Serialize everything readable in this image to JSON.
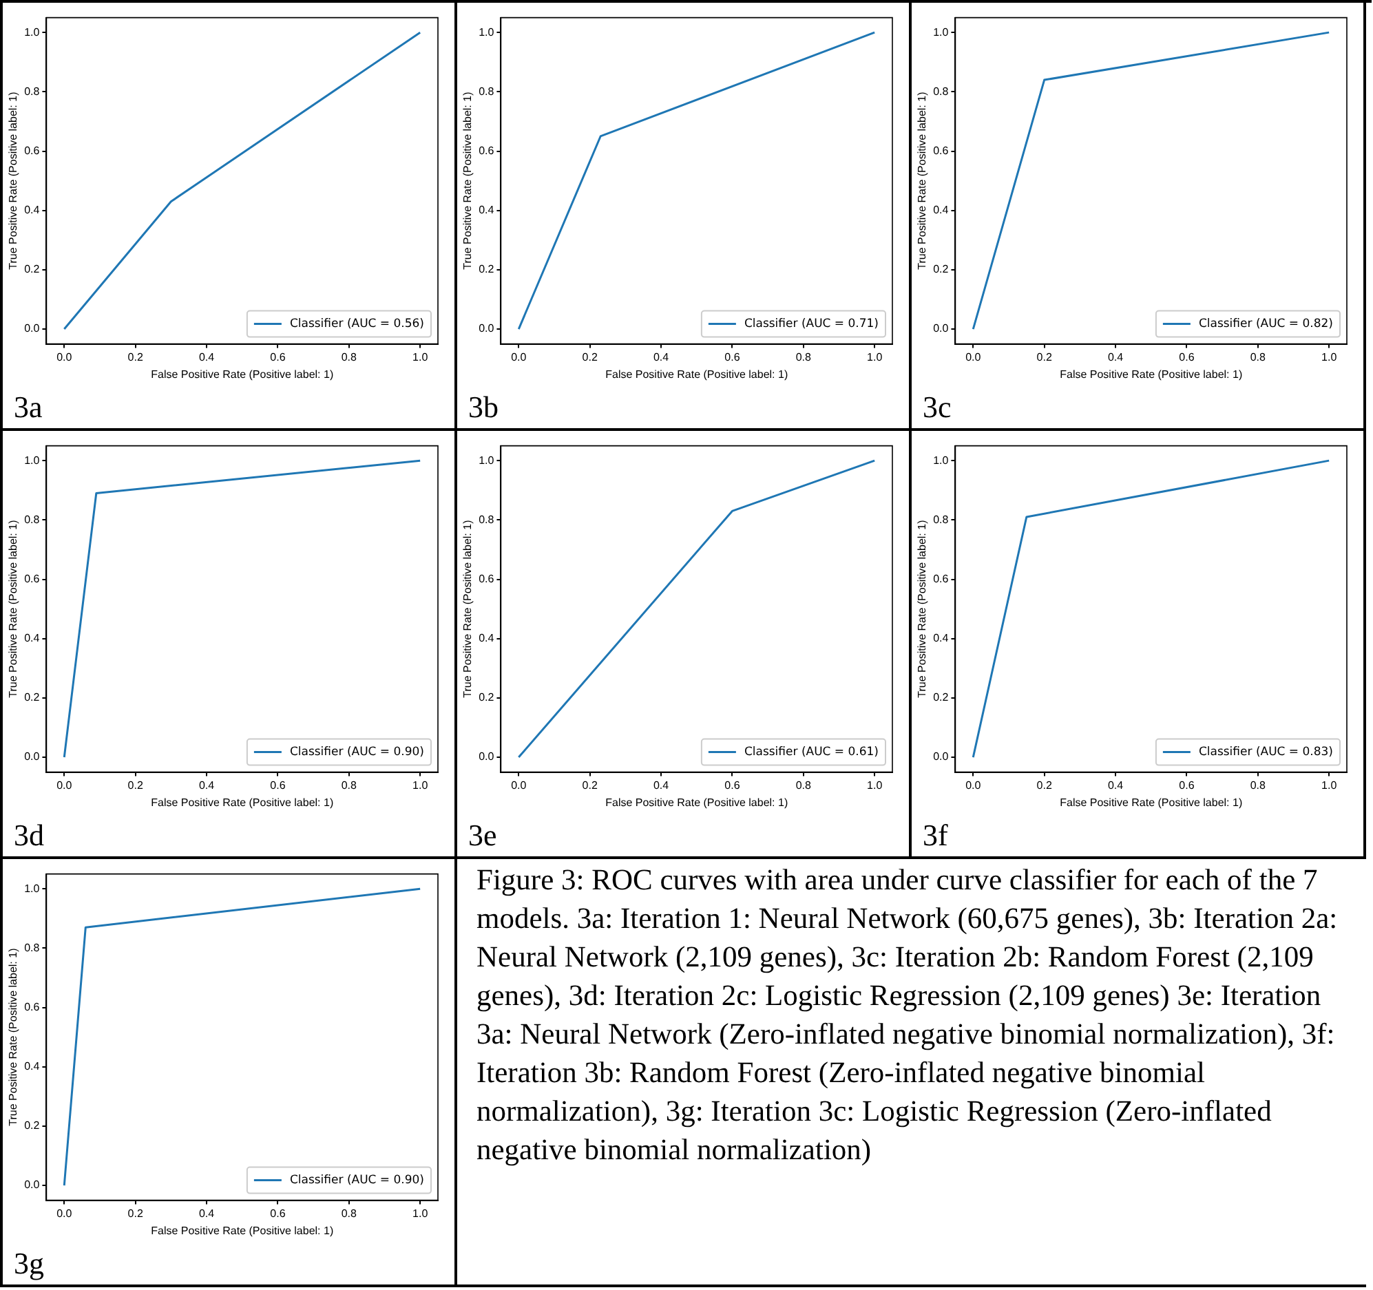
{
  "chart_data": [
    {
      "type": "line",
      "xlabel": "False Positive Rate (Positive label: 1)",
      "ylabel": "True Positive Rate (Positive label: 1)",
      "annotations": [
        "3a"
      ],
      "legend": "bottom right",
      "grid": false,
      "marker": "none",
      "line_style": "solid",
      "xlim": [
        -0.05,
        1.05
      ],
      "ylim": [
        -0.05,
        1.05
      ],
      "xticks": [
        {
          "value": 0,
          "label": "0.0"
        },
        {
          "value": 0.2,
          "label": "0.2"
        },
        {
          "value": 0.4,
          "label": "0.4"
        },
        {
          "value": 0.6,
          "label": "0.6"
        },
        {
          "value": 0.8,
          "label": "0.8"
        },
        {
          "value": 1,
          "label": "1.0"
        }
      ],
      "yticks": [
        {
          "value": 0,
          "label": "0.0"
        },
        {
          "value": 0.2,
          "label": "0.2"
        },
        {
          "value": 0.4,
          "label": "0.4"
        },
        {
          "value": 0.6,
          "label": "0.6"
        },
        {
          "value": 0.8,
          "label": "0.8"
        },
        {
          "value": 1,
          "label": "1.0"
        }
      ],
      "series": [
        {
          "name": "Classifier (AUC = 0.56)",
          "color": "#1f77b4",
          "x": [
            0,
            0.3,
            1
          ],
          "values": [
            0,
            0.43,
            1
          ]
        }
      ]
    },
    {
      "type": "line",
      "xlabel": "False Positive Rate (Positive label: 1)",
      "ylabel": "True Positive Rate (Positive label: 1)",
      "annotations": [
        "3b"
      ],
      "legend": "bottom right",
      "grid": false,
      "marker": "none",
      "line_style": "solid",
      "xlim": [
        -0.05,
        1.05
      ],
      "ylim": [
        -0.05,
        1.05
      ],
      "xticks": [
        {
          "value": 0,
          "label": "0.0"
        },
        {
          "value": 0.2,
          "label": "0.2"
        },
        {
          "value": 0.4,
          "label": "0.4"
        },
        {
          "value": 0.6,
          "label": "0.6"
        },
        {
          "value": 0.8,
          "label": "0.8"
        },
        {
          "value": 1,
          "label": "1.0"
        }
      ],
      "yticks": [
        {
          "value": 0,
          "label": "0.0"
        },
        {
          "value": 0.2,
          "label": "0.2"
        },
        {
          "value": 0.4,
          "label": "0.4"
        },
        {
          "value": 0.6,
          "label": "0.6"
        },
        {
          "value": 0.8,
          "label": "0.8"
        },
        {
          "value": 1,
          "label": "1.0"
        }
      ],
      "series": [
        {
          "name": "Classifier (AUC = 0.71)",
          "color": "#1f77b4",
          "x": [
            0,
            0.23,
            1
          ],
          "values": [
            0,
            0.65,
            1
          ]
        }
      ]
    },
    {
      "type": "line",
      "xlabel": "False Positive Rate (Positive label: 1)",
      "ylabel": "True Positive Rate (Positive label: 1)",
      "annotations": [
        "3c"
      ],
      "legend": "bottom right",
      "grid": false,
      "marker": "none",
      "line_style": "solid",
      "xlim": [
        -0.05,
        1.05
      ],
      "ylim": [
        -0.05,
        1.05
      ],
      "xticks": [
        {
          "value": 0,
          "label": "0.0"
        },
        {
          "value": 0.2,
          "label": "0.2"
        },
        {
          "value": 0.4,
          "label": "0.4"
        },
        {
          "value": 0.6,
          "label": "0.6"
        },
        {
          "value": 0.8,
          "label": "0.8"
        },
        {
          "value": 1,
          "label": "1.0"
        }
      ],
      "yticks": [
        {
          "value": 0,
          "label": "0.0"
        },
        {
          "value": 0.2,
          "label": "0.2"
        },
        {
          "value": 0.4,
          "label": "0.4"
        },
        {
          "value": 0.6,
          "label": "0.6"
        },
        {
          "value": 0.8,
          "label": "0.8"
        },
        {
          "value": 1,
          "label": "1.0"
        }
      ],
      "series": [
        {
          "name": "Classifier (AUC = 0.82)",
          "color": "#1f77b4",
          "x": [
            0,
            0.2,
            1
          ],
          "values": [
            0,
            0.84,
            1
          ]
        }
      ]
    },
    {
      "type": "line",
      "xlabel": "False Positive Rate (Positive label: 1)",
      "ylabel": "True Positive Rate (Positive label: 1)",
      "annotations": [
        "3d"
      ],
      "legend": "bottom right",
      "grid": false,
      "marker": "none",
      "line_style": "solid",
      "xlim": [
        -0.05,
        1.05
      ],
      "ylim": [
        -0.05,
        1.05
      ],
      "xticks": [
        {
          "value": 0,
          "label": "0.0"
        },
        {
          "value": 0.2,
          "label": "0.2"
        },
        {
          "value": 0.4,
          "label": "0.4"
        },
        {
          "value": 0.6,
          "label": "0.6"
        },
        {
          "value": 0.8,
          "label": "0.8"
        },
        {
          "value": 1,
          "label": "1.0"
        }
      ],
      "yticks": [
        {
          "value": 0,
          "label": "0.0"
        },
        {
          "value": 0.2,
          "label": "0.2"
        },
        {
          "value": 0.4,
          "label": "0.4"
        },
        {
          "value": 0.6,
          "label": "0.6"
        },
        {
          "value": 0.8,
          "label": "0.8"
        },
        {
          "value": 1,
          "label": "1.0"
        }
      ],
      "series": [
        {
          "name": "Classifier (AUC = 0.90)",
          "color": "#1f77b4",
          "x": [
            0,
            0.09,
            1
          ],
          "values": [
            0,
            0.89,
            1
          ]
        }
      ]
    },
    {
      "type": "line",
      "xlabel": "False Positive Rate (Positive label: 1)",
      "ylabel": "True Positive Rate (Positive label: 1)",
      "annotations": [
        "3e"
      ],
      "legend": "bottom right",
      "grid": false,
      "marker": "none",
      "line_style": "solid",
      "xlim": [
        -0.05,
        1.05
      ],
      "ylim": [
        -0.05,
        1.05
      ],
      "xticks": [
        {
          "value": 0,
          "label": "0.0"
        },
        {
          "value": 0.2,
          "label": "0.2"
        },
        {
          "value": 0.4,
          "label": "0.4"
        },
        {
          "value": 0.6,
          "label": "0.6"
        },
        {
          "value": 0.8,
          "label": "0.8"
        },
        {
          "value": 1,
          "label": "1.0"
        }
      ],
      "yticks": [
        {
          "value": 0,
          "label": "0.0"
        },
        {
          "value": 0.2,
          "label": "0.2"
        },
        {
          "value": 0.4,
          "label": "0.4"
        },
        {
          "value": 0.6,
          "label": "0.6"
        },
        {
          "value": 0.8,
          "label": "0.8"
        },
        {
          "value": 1,
          "label": "1.0"
        }
      ],
      "series": [
        {
          "name": "Classifier (AUC = 0.61)",
          "color": "#1f77b4",
          "x": [
            0,
            0.6,
            1
          ],
          "values": [
            0,
            0.83,
            1
          ]
        }
      ]
    },
    {
      "type": "line",
      "xlabel": "False Positive Rate (Positive label: 1)",
      "ylabel": "True Positive Rate (Positive label: 1)",
      "annotations": [
        "3f"
      ],
      "legend": "bottom right",
      "grid": false,
      "marker": "none",
      "line_style": "solid",
      "xlim": [
        -0.05,
        1.05
      ],
      "ylim": [
        -0.05,
        1.05
      ],
      "xticks": [
        {
          "value": 0,
          "label": "0.0"
        },
        {
          "value": 0.2,
          "label": "0.2"
        },
        {
          "value": 0.4,
          "label": "0.4"
        },
        {
          "value": 0.6,
          "label": "0.6"
        },
        {
          "value": 0.8,
          "label": "0.8"
        },
        {
          "value": 1,
          "label": "1.0"
        }
      ],
      "yticks": [
        {
          "value": 0,
          "label": "0.0"
        },
        {
          "value": 0.2,
          "label": "0.2"
        },
        {
          "value": 0.4,
          "label": "0.4"
        },
        {
          "value": 0.6,
          "label": "0.6"
        },
        {
          "value": 0.8,
          "label": "0.8"
        },
        {
          "value": 1,
          "label": "1.0"
        }
      ],
      "series": [
        {
          "name": "Classifier (AUC = 0.83)",
          "color": "#1f77b4",
          "x": [
            0,
            0.15,
            1
          ],
          "values": [
            0,
            0.81,
            1
          ]
        }
      ]
    },
    {
      "type": "line",
      "xlabel": "False Positive Rate (Positive label: 1)",
      "ylabel": "True Positive Rate (Positive label: 1)",
      "annotations": [
        "3g",
        "Figure 3: ROC curves with area under curve classifier for each of the 7 models. 3a: Iteration 1: Neural Network (60,675 genes), 3b: Iteration 2a: Neural Network (2,109 genes), 3c: Iteration 2b: Random Forest (2,109 genes), 3d: Iteration 2c: Logistic Regression (2,109 genes) 3e: Iteration 3a: Neural Network (Zero-inflated negative binomial normalization), 3f: Iteration 3b: Random Forest (Zero-inflated negative binomial normalization), 3g: Iteration 3c: Logistic Regression (Zero-inflated negative binomial normalization)"
      ],
      "legend": "bottom right",
      "grid": false,
      "marker": "none",
      "line_style": "solid",
      "xlim": [
        -0.05,
        1.05
      ],
      "ylim": [
        -0.05,
        1.05
      ],
      "xticks": [
        {
          "value": 0,
          "label": "0.0"
        },
        {
          "value": 0.2,
          "label": "0.2"
        },
        {
          "value": 0.4,
          "label": "0.4"
        },
        {
          "value": 0.6,
          "label": "0.6"
        },
        {
          "value": 0.8,
          "label": "0.8"
        },
        {
          "value": 1,
          "label": "1.0"
        }
      ],
      "yticks": [
        {
          "value": 0,
          "label": "0.0"
        },
        {
          "value": 0.2,
          "label": "0.2"
        },
        {
          "value": 0.4,
          "label": "0.4"
        },
        {
          "value": 0.6,
          "label": "0.6"
        },
        {
          "value": 0.8,
          "label": "0.8"
        },
        {
          "value": 1,
          "label": "1.0"
        }
      ],
      "series": [
        {
          "name": "Classifier (AUC = 0.90)",
          "color": "#1f77b4",
          "x": [
            0,
            0.06,
            1
          ],
          "values": [
            0,
            0.87,
            1
          ]
        }
      ]
    }
  ]
}
